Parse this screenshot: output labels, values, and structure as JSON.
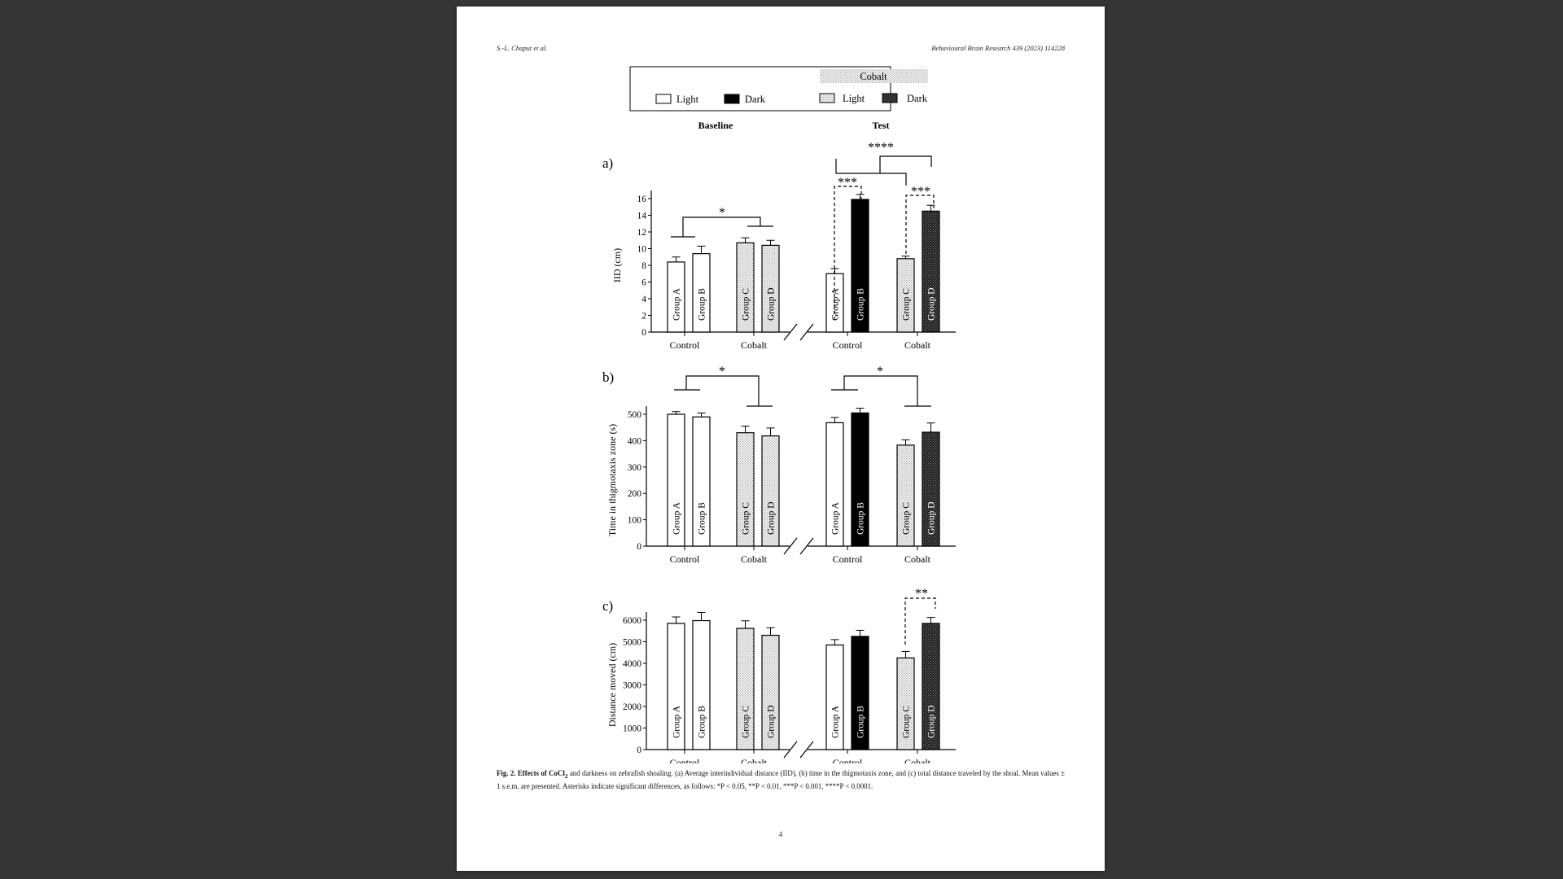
{
  "header": {
    "left": "S.-L. Chaput et al.",
    "right": "Behavioural Brain Research 439 (2023) 114228"
  },
  "legend": {
    "cobalt_title": "Cobalt",
    "light": "Light",
    "dark": "Dark",
    "cobalt_light": "Light",
    "cobalt_dark": "Dark"
  },
  "figure": {
    "baseline_label": "Baseline",
    "test_label": "Test",
    "x_categories": [
      "Control",
      "Cobalt",
      "Control",
      "Cobalt"
    ],
    "group_labels": [
      "Group A",
      "Group B",
      "Group C",
      "Group D"
    ]
  },
  "panels": [
    {
      "letter": "a)",
      "ylabel": "IID (cm)"
    },
    {
      "letter": "b)",
      "ylabel": "Time in thigmotaxis zone (s)"
    },
    {
      "letter": "c)",
      "ylabel": "Distance moved (cm)"
    }
  ],
  "significance": {
    "a": [
      "*",
      "****",
      "***",
      "***"
    ],
    "b": [
      "*",
      "*"
    ],
    "c": [
      "**"
    ]
  },
  "caption": {
    "fig_label": "Fig. 2.",
    "fig_title_pre": "Effects of CoCl",
    "fig_title_sub": "2",
    "text": " and darkness on zebrafish shoaling. (a) Average interindividual distance (IID), (b) time in the thigmotaxis zone, and (c) total distance traveled by the shoal. Mean values ± 1 s.e.m. are presented. Asterisks indicate significant differences, as follows: *P < 0.05, **P < 0.01, ***P < 0.001, ****P < 0.0001."
  },
  "page_number": "4",
  "chart_data": [
    {
      "type": "bar",
      "panel": "a)",
      "ylabel": "IID (cm)",
      "ylim": [
        0,
        16
      ],
      "yticks": [
        0,
        2,
        4,
        6,
        8,
        10,
        12,
        14,
        16
      ],
      "series": [
        {
          "name": "Baseline",
          "categories": [
            "Group A",
            "Group B",
            "Group C",
            "Group D"
          ],
          "values": [
            8.4,
            9.4,
            10.7,
            10.4
          ],
          "errors": [
            0.6,
            0.9,
            0.6,
            0.6
          ]
        },
        {
          "name": "Test",
          "categories": [
            "Group A",
            "Group B",
            "Group C",
            "Group D"
          ],
          "values": [
            7.0,
            15.9,
            8.8,
            14.5
          ],
          "errors": [
            0.6,
            0.6,
            0.3,
            0.7
          ]
        }
      ]
    },
    {
      "type": "bar",
      "panel": "b)",
      "ylabel": "Time in thigmotaxis zone (s)",
      "ylim": [
        0,
        500
      ],
      "yticks": [
        0,
        100,
        200,
        300,
        400,
        500
      ],
      "series": [
        {
          "name": "Baseline",
          "categories": [
            "Group A",
            "Group B",
            "Group C",
            "Group D"
          ],
          "values": [
            500,
            490,
            430,
            418
          ],
          "errors": [
            10,
            15,
            25,
            30
          ]
        },
        {
          "name": "Test",
          "categories": [
            "Group A",
            "Group B",
            "Group C",
            "Group D"
          ],
          "values": [
            468,
            505,
            383,
            432
          ],
          "errors": [
            20,
            18,
            20,
            35
          ]
        }
      ]
    },
    {
      "type": "bar",
      "panel": "c)",
      "ylabel": "Distance moved (cm)",
      "ylim": [
        0,
        6000
      ],
      "yticks": [
        0,
        1000,
        2000,
        3000,
        4000,
        5000,
        6000
      ],
      "series": [
        {
          "name": "Baseline",
          "categories": [
            "Group A",
            "Group B",
            "Group C",
            "Group D"
          ],
          "values": [
            5850,
            5980,
            5620,
            5300
          ],
          "errors": [
            300,
            380,
            350,
            350
          ]
        },
        {
          "name": "Test",
          "categories": [
            "Group A",
            "Group B",
            "Group C",
            "Group D"
          ],
          "values": [
            4850,
            5250,
            4250,
            5850
          ],
          "errors": [
            250,
            280,
            300,
            280
          ]
        }
      ]
    }
  ]
}
